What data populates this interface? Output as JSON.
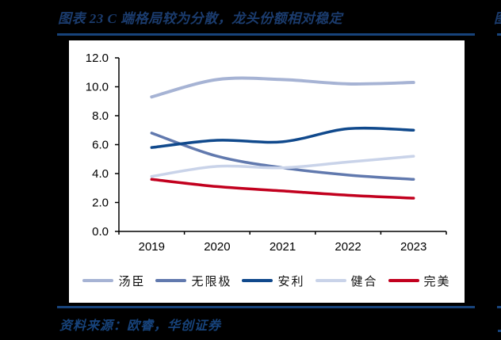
{
  "page": {
    "background": "#000000",
    "accent": "#17437B"
  },
  "header": {
    "title": "图表 23  C 端格局较为分散，龙头份额相对稳定",
    "edge_fragment": "图"
  },
  "footer": {
    "source": "资料来源：欧睿，华创证券"
  },
  "chart_data": {
    "type": "line",
    "title": "",
    "xlabel": "",
    "ylabel": "",
    "categories": [
      "2019",
      "2020",
      "2021",
      "2022",
      "2023"
    ],
    "series": [
      {
        "name": "汤臣",
        "color": "#A6B3D4",
        "values": [
          9.3,
          10.5,
          10.5,
          10.2,
          10.3
        ]
      },
      {
        "name": "无限极",
        "color": "#6179AE",
        "values": [
          6.8,
          5.2,
          4.4,
          3.9,
          3.6
        ]
      },
      {
        "name": "安利",
        "color": "#10498C",
        "values": [
          5.8,
          6.3,
          6.2,
          7.1,
          7.0
        ]
      },
      {
        "name": "健合",
        "color": "#C9D3E9",
        "values": [
          3.8,
          4.5,
          4.4,
          4.8,
          5.2
        ]
      },
      {
        "name": "完美",
        "color": "#C2001E",
        "values": [
          3.6,
          3.1,
          2.8,
          2.5,
          2.3
        ]
      }
    ],
    "ylim": [
      0,
      12
    ],
    "ytick_step": 2,
    "ytick_labels": [
      "0.0",
      "2.0",
      "4.0",
      "6.0",
      "8.0",
      "10.0",
      "12.0"
    ],
    "grid": false,
    "smooth": true,
    "legend_position": "bottom"
  }
}
